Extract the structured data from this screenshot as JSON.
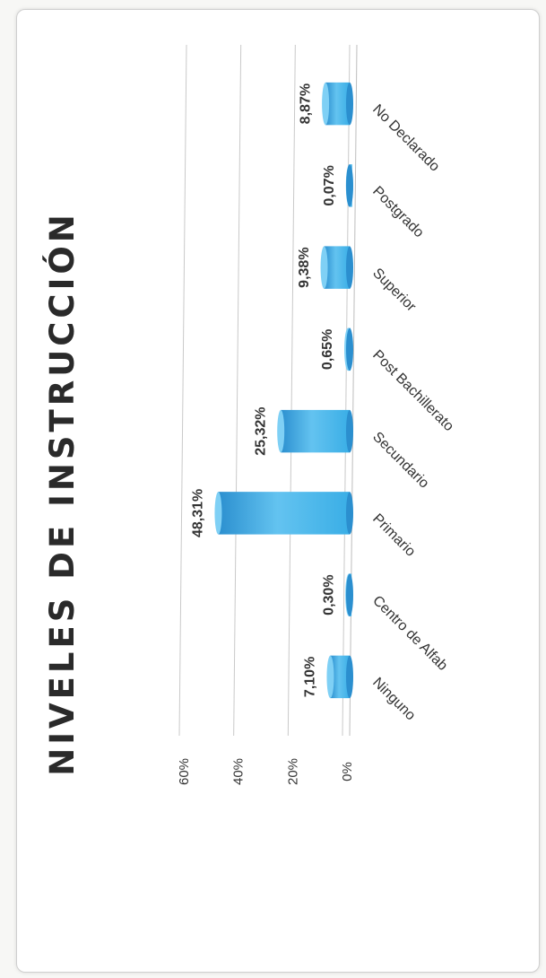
{
  "chart_data": {
    "type": "bar",
    "title": "NIVELES DE INSTRUCCIÓN",
    "categories": [
      "Ninguno",
      "Centro de Alfab",
      "Primario",
      "Secundario",
      "Post Bachillerato",
      "Superior",
      "Postgrado",
      "No Declarado"
    ],
    "values": [
      7.1,
      0.3,
      48.31,
      25.32,
      0.65,
      9.38,
      0.07,
      8.87
    ],
    "data_labels": [
      "7,10%",
      "0,30%",
      "48,31%",
      "25,32%",
      "0,65%",
      "9,38%",
      "0,07%",
      "8,87%"
    ],
    "ylim": [
      0,
      60
    ],
    "yticks": [
      "0%",
      "20%",
      "40%",
      "60%"
    ],
    "grid": true,
    "bar_color": "#3aaee6"
  }
}
